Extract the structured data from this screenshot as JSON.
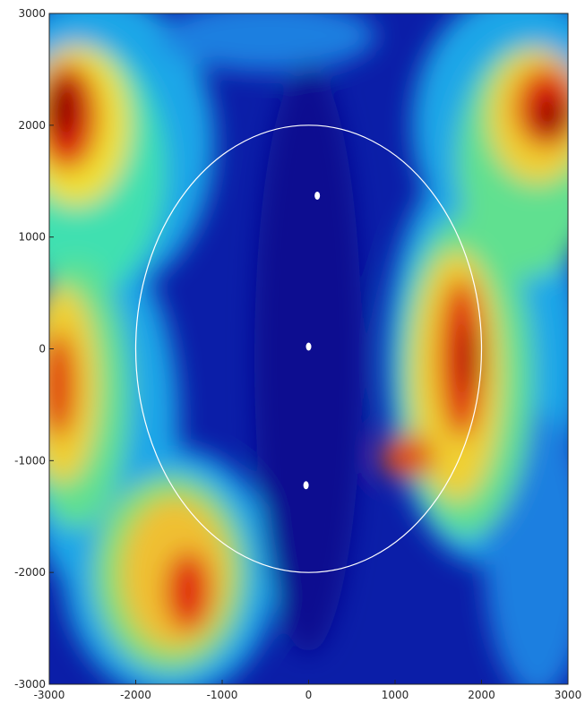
{
  "chart_data": {
    "type": "scatter",
    "colormap": "jet",
    "x": [
      100,
      0,
      -30
    ],
    "y": [
      1370,
      20,
      -1220
    ],
    "point_color": "#ffffff",
    "circle": {
      "center": [
        0,
        0
      ],
      "radius": 2000,
      "color": "#ffffff"
    },
    "xlim": [
      -3000,
      3000
    ],
    "ylim": [
      -3000,
      3000
    ],
    "xticks": [
      -3000,
      -2000,
      -1000,
      0,
      1000,
      2000,
      3000
    ],
    "yticks": [
      -3000,
      -2000,
      -1000,
      0,
      1000,
      2000,
      3000
    ]
  }
}
